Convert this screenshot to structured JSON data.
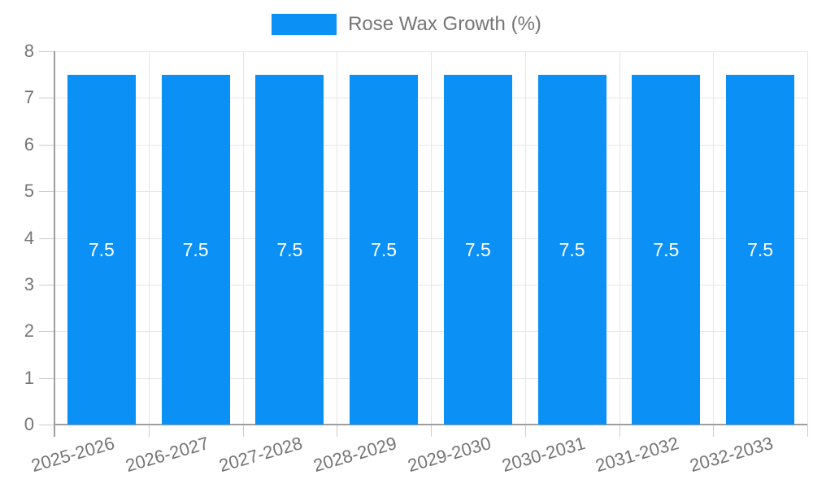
{
  "legend": {
    "label": "Rose Wax Growth (%)"
  },
  "chart_data": {
    "type": "bar",
    "title": "",
    "categories": [
      "2025-2026",
      "2026-2027",
      "2027-2028",
      "2028-2029",
      "2029-2030",
      "2030-2031",
      "2031-2032",
      "2032-2033"
    ],
    "series": [
      {
        "name": "Rose Wax Growth (%)",
        "values": [
          7.5,
          7.5,
          7.5,
          7.5,
          7.5,
          7.5,
          7.5,
          7.5
        ]
      }
    ],
    "value_labels": [
      "7.5",
      "7.5",
      "7.5",
      "7.5",
      "7.5",
      "7.5",
      "7.5",
      "7.5"
    ],
    "ylabel": "",
    "xlabel": "",
    "ylim": [
      0,
      8
    ],
    "yticks": [
      0,
      1,
      2,
      3,
      4,
      5,
      6,
      7,
      8
    ],
    "grid": true,
    "legend_position": "top-center",
    "x_label_rotation_deg": -16,
    "colors": {
      "bar": "#0b90f5",
      "grid": "#e6e6e6",
      "axis": "#9e9e9e",
      "tick": "#cccccc",
      "text": "#757575",
      "value_label": "#ffffff"
    }
  }
}
